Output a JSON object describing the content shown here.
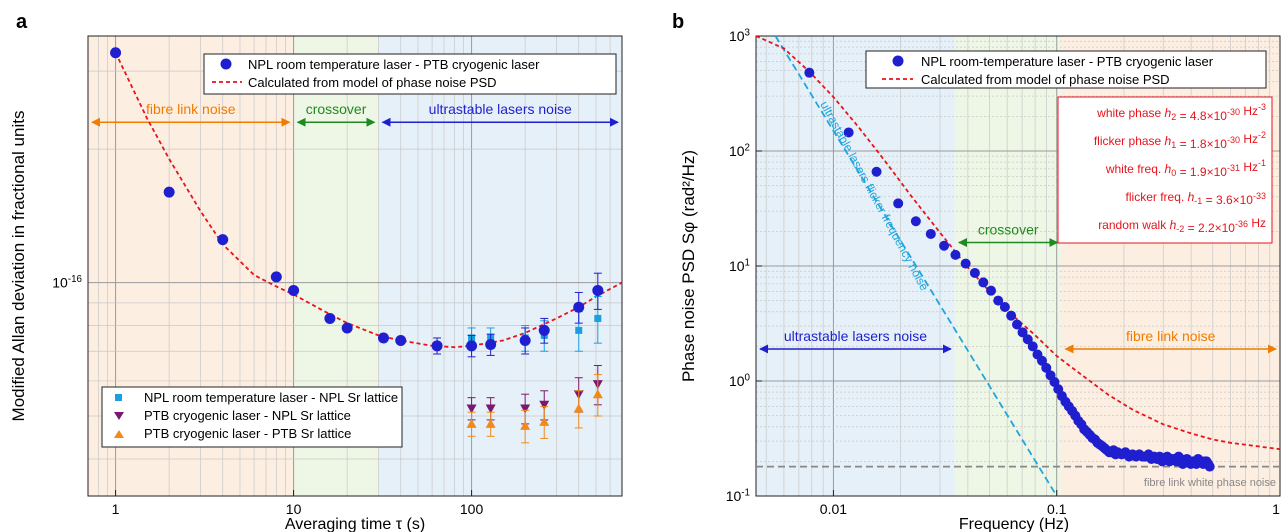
{
  "colors": {
    "fibre_band": "#fdeee2",
    "crossover_band": "#eef6e6",
    "lasers_band": "#e6f0f8",
    "data_blue": "#1f1fd0",
    "model_red": "#e8131b",
    "npl_sq": "#1aa0e0",
    "ptb_npl_tri": "#7a1a6e",
    "ptb_ptb_tri": "#f08a1a",
    "orange_text": "#f07c00",
    "green_text": "#1f8a1f",
    "cyan_dash": "#1fa5e0",
    "grey_dash": "#888888"
  },
  "chart_data": [
    {
      "type": "scatter",
      "panel_label": "a",
      "xlabel": "Averaging time τ (s)",
      "ylabel": "Modified Allan deviation in fractional units",
      "xscale": "log",
      "yscale": "log",
      "xlim": [
        0.7,
        700
      ],
      "ylim": [
        3.3e-17,
        3.6e-16
      ],
      "xticks": [
        {
          "v": 1,
          "label": "1"
        },
        {
          "v": 10,
          "label": "10"
        },
        {
          "v": 100,
          "label": "100"
        }
      ],
      "ytick_label": {
        "v": 1e-16,
        "base": "10",
        "exp": "-16"
      },
      "legend_top": {
        "entries": [
          "NPL room temperature laser - PTB cryogenic laser",
          "Calculated from model of phase noise PSD"
        ]
      },
      "legend_bottom": {
        "entries": [
          "NPL room temperature laser - NPL Sr lattice",
          "PTB cryogenic laser - NPL Sr lattice",
          "PTB cryogenic laser - PTB Sr lattice"
        ]
      },
      "regions": [
        {
          "name": "fibre",
          "x0": 0.7,
          "x1": 10,
          "label": "fibre link noise",
          "arrow_y": 2.3e-16
        },
        {
          "name": "crossover",
          "x0": 10,
          "x1": 30,
          "label": "crossover",
          "arrow_y": 2.3e-16
        },
        {
          "name": "lasers",
          "x0": 30,
          "x1": 700,
          "label": "ultrastable lasers noise",
          "arrow_y": 2.3e-16
        }
      ],
      "series": [
        {
          "name": "NPL room temperature laser - PTB cryogenic laser",
          "marker": "circle",
          "x": [
            1,
            2,
            4,
            8,
            10,
            16,
            20,
            32,
            40,
            64,
            100,
            128,
            200,
            256,
            400,
            512
          ],
          "y": [
            3.3e-16,
            1.6e-16,
            1.25e-16,
            1.03e-16,
            9.6e-17,
            8.3e-17,
            7.9e-17,
            7.5e-17,
            7.4e-17,
            7.2e-17,
            7.2e-17,
            7.25e-17,
            7.4e-17,
            7.8e-17,
            8.8e-17,
            9.6e-17
          ],
          "err": [
            0,
            0,
            0,
            0,
            0,
            0,
            0,
            0,
            0,
            3e-18,
            4e-18,
            4e-18,
            5e-18,
            5e-18,
            7e-18,
            9e-18
          ]
        },
        {
          "name": "NPL room temperature laser - NPL Sr lattice",
          "marker": "square",
          "x": [
            100,
            128,
            200,
            256,
            400,
            512
          ],
          "y": [
            7.5e-17,
            7.5e-17,
            7.5e-17,
            7.6e-17,
            7.8e-17,
            8.3e-17
          ],
          "err": [
            4e-18,
            4e-18,
            5e-18,
            6e-18,
            8e-18,
            1e-17
          ]
        },
        {
          "name": "PTB cryogenic laser - NPL Sr lattice",
          "marker": "triangle-down",
          "x": [
            100,
            128,
            200,
            256,
            400,
            512
          ],
          "y": [
            5.2e-17,
            5.2e-17,
            5.2e-17,
            5.3e-17,
            5.6e-17,
            5.9e-17
          ],
          "err": [
            3e-18,
            3e-18,
            4e-18,
            4e-18,
            5e-18,
            6e-18
          ]
        },
        {
          "name": "PTB cryogenic laser - PTB Sr lattice",
          "marker": "triangle-up",
          "x": [
            100,
            128,
            200,
            256,
            400,
            512
          ],
          "y": [
            4.8e-17,
            4.8e-17,
            4.75e-17,
            4.85e-17,
            5.2e-17,
            5.6e-17
          ],
          "err": [
            3e-18,
            3e-18,
            4e-18,
            4e-18,
            5e-18,
            6e-18
          ]
        },
        {
          "name": "Calculated from model of phase noise PSD",
          "line": "dashed",
          "x": [
            1,
            1.5,
            2,
            3,
            4,
            6,
            8,
            10,
            15,
            20,
            30,
            40,
            60,
            80,
            100,
            150,
            200,
            300,
            400,
            500,
            700
          ],
          "y": [
            3.3e-16,
            2.35e-16,
            1.9e-16,
            1.45e-16,
            1.22e-16,
            1.04e-16,
            9.8e-17,
            9.4e-17,
            8.6e-17,
            8.1e-17,
            7.6e-17,
            7.4e-17,
            7.2e-17,
            7.15e-17,
            7.2e-17,
            7.4e-17,
            7.7e-17,
            8.3e-17,
            8.8e-17,
            9.3e-17,
            1e-16
          ]
        }
      ]
    },
    {
      "type": "scatter",
      "panel_label": "b",
      "xlabel": "Frequency (Hz)",
      "ylabel": "Phase noise PSD Sφ (rad²/Hz)",
      "xscale": "log",
      "yscale": "log",
      "xlim": [
        0.0045,
        1
      ],
      "ylim": [
        0.1,
        1000
      ],
      "xticks": [
        {
          "v": 0.01,
          "label": "0.01"
        },
        {
          "v": 0.1,
          "label": "0.1"
        },
        {
          "v": 1,
          "label": "1"
        }
      ],
      "yticks": [
        {
          "v": 0.1,
          "base": "10",
          "exp": "-1"
        },
        {
          "v": 1,
          "base": "10",
          "exp": "0"
        },
        {
          "v": 10,
          "base": "10",
          "exp": "1"
        },
        {
          "v": 100,
          "base": "10",
          "exp": "2"
        },
        {
          "v": 1000,
          "base": "10",
          "exp": "3"
        }
      ],
      "legend": {
        "entries": [
          "NPL room-temperature laser - PTB cryogenic laser",
          "Calculated from model of phase noise PSD"
        ]
      },
      "regions": [
        {
          "name": "lasers",
          "x0": 0.0045,
          "x1": 0.035,
          "label": "ultrastable lasers noise",
          "arrow_y": 1.9
        },
        {
          "name": "crossover",
          "x0": 0.035,
          "x1": 0.105,
          "label": "crossover",
          "arrow_y": 16
        },
        {
          "name": "fibre",
          "x0": 0.105,
          "x1": 1,
          "label": "fibre link noise",
          "arrow_y": 1.9
        }
      ],
      "coefficients": [
        {
          "label": "white phase",
          "h": "h",
          "sub": "2",
          "eq": " =  4.8×10",
          "exp": "-30",
          "unit": " Hz",
          "unit_exp": "-3"
        },
        {
          "label": "flicker phase",
          "h": "h",
          "sub": "1",
          "eq": " = 1.8×10",
          "exp": "-30",
          "unit": " Hz",
          "unit_exp": "-2"
        },
        {
          "label": "white freq.",
          "h": "h",
          "sub": "0",
          "eq": "  = 1.9×10",
          "exp": "-31",
          "unit": " Hz",
          "unit_exp": "-1"
        },
        {
          "label": "flicker freq.",
          "h": "h",
          "sub": "-1",
          "eq": " = 3.6×10",
          "exp": "-33",
          "unit": "",
          "unit_exp": ""
        },
        {
          "label": "random walk",
          "h": "h",
          "sub": "-2",
          "eq": " = 2.2×10",
          "exp": "-36",
          "unit": " Hz",
          "unit_exp": ""
        }
      ],
      "annotations": {
        "flicker_line_label": "ultrastable lasers flicker frequency noise",
        "white_phase_line_label": "fibre link white phase noise",
        "white_phase_floor": 0.18
      },
      "series": [
        {
          "name": "NPL room-temperature laser - PTB cryogenic laser",
          "marker": "circle",
          "x": [
            0.0078,
            0.0117,
            0.0156,
            0.0195,
            0.0234,
            0.0273,
            0.0313,
            0.0352,
            0.0391,
            0.043,
            0.0469,
            0.0508,
            0.0547,
            0.0586,
            0.0625,
            0.0664,
            0.0703,
            0.0742,
            0.0781,
            0.082,
            0.0859,
            0.0898,
            0.0938,
            0.0977,
            0.1016,
            0.1055,
            0.1094,
            0.1133,
            0.1172,
            0.1211,
            0.125,
            0.1289,
            0.1328,
            0.1367,
            0.1406,
            0.1445,
            0.1484,
            0.1523,
            0.1563,
            0.1602,
            0.1641,
            0.168,
            0.1719,
            0.1758,
            0.1797,
            0.1836,
            0.1875,
            0.1953,
            0.2031,
            0.2109,
            0.2188,
            0.2266,
            0.2344,
            0.2422,
            0.25,
            0.2578,
            0.2656,
            0.2734,
            0.2813,
            0.2891,
            0.2969,
            0.3047,
            0.3125,
            0.3203,
            0.3281,
            0.3359,
            0.3438,
            0.3516,
            0.3594,
            0.3672,
            0.375,
            0.3828,
            0.3906,
            0.3984,
            0.4063,
            0.4141,
            0.4219,
            0.4297,
            0.4375,
            0.4453,
            0.4531,
            0.4609,
            0.4688,
            0.4766,
            0.4844
          ],
          "y": [
            480,
            145,
            66,
            35,
            24.5,
            19,
            15,
            12.5,
            10.5,
            8.7,
            7.2,
            6.1,
            5.0,
            4.4,
            3.7,
            3.1,
            2.65,
            2.3,
            2.0,
            1.7,
            1.5,
            1.3,
            1.12,
            0.98,
            0.85,
            0.74,
            0.66,
            0.6,
            0.55,
            0.5,
            0.45,
            0.42,
            0.38,
            0.36,
            0.34,
            0.32,
            0.31,
            0.29,
            0.28,
            0.27,
            0.26,
            0.25,
            0.24,
            0.24,
            0.25,
            0.23,
            0.24,
            0.23,
            0.24,
            0.22,
            0.23,
            0.22,
            0.23,
            0.22,
            0.22,
            0.23,
            0.21,
            0.22,
            0.21,
            0.22,
            0.2,
            0.21,
            0.22,
            0.2,
            0.21,
            0.21,
            0.2,
            0.22,
            0.21,
            0.19,
            0.2,
            0.21,
            0.2,
            0.19,
            0.2,
            0.2,
            0.19,
            0.21,
            0.2,
            0.2,
            0.19,
            0.2,
            0.2,
            0.19,
            0.18
          ]
        },
        {
          "name": "Calculated from model of phase noise PSD",
          "line": "dashed",
          "x": [
            0.0045,
            0.006,
            0.0078,
            0.01,
            0.013,
            0.017,
            0.022,
            0.03,
            0.04,
            0.05,
            0.06,
            0.08,
            0.1,
            0.13,
            0.17,
            0.22,
            0.3,
            0.4,
            0.5,
            0.6,
            0.8,
            1.0
          ],
          "y": [
            1000,
            780,
            490,
            295,
            160,
            82,
            42,
            19.5,
            9.7,
            6.0,
            4.1,
            2.5,
            1.65,
            1.12,
            0.76,
            0.56,
            0.42,
            0.35,
            0.31,
            0.29,
            0.27,
            0.255
          ]
        },
        {
          "name": "ultrastable lasers flicker frequency noise",
          "line": "dashed",
          "x": [
            0.0055,
            0.1
          ],
          "y": [
            1000,
            0.1
          ]
        }
      ]
    }
  ]
}
